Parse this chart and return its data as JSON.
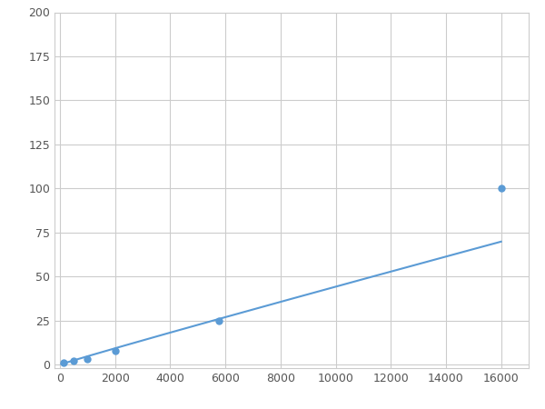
{
  "x": [
    125,
    500,
    1000,
    2000,
    5750,
    16000
  ],
  "y": [
    1.0,
    2.0,
    3.0,
    8.0,
    25.0,
    100.0
  ],
  "line_color": "#5b9bd5",
  "marker_color": "#5b9bd5",
  "marker_size": 5,
  "xlim": [
    -200,
    17000
  ],
  "ylim": [
    -2,
    200
  ],
  "xticks": [
    0,
    2000,
    4000,
    6000,
    8000,
    10000,
    12000,
    14000,
    16000
  ],
  "yticks": [
    0,
    25,
    50,
    75,
    100,
    125,
    150,
    175,
    200
  ],
  "grid_color": "#cccccc",
  "background_color": "#ffffff",
  "figsize": [
    6.0,
    4.5
  ],
  "dpi": 100
}
